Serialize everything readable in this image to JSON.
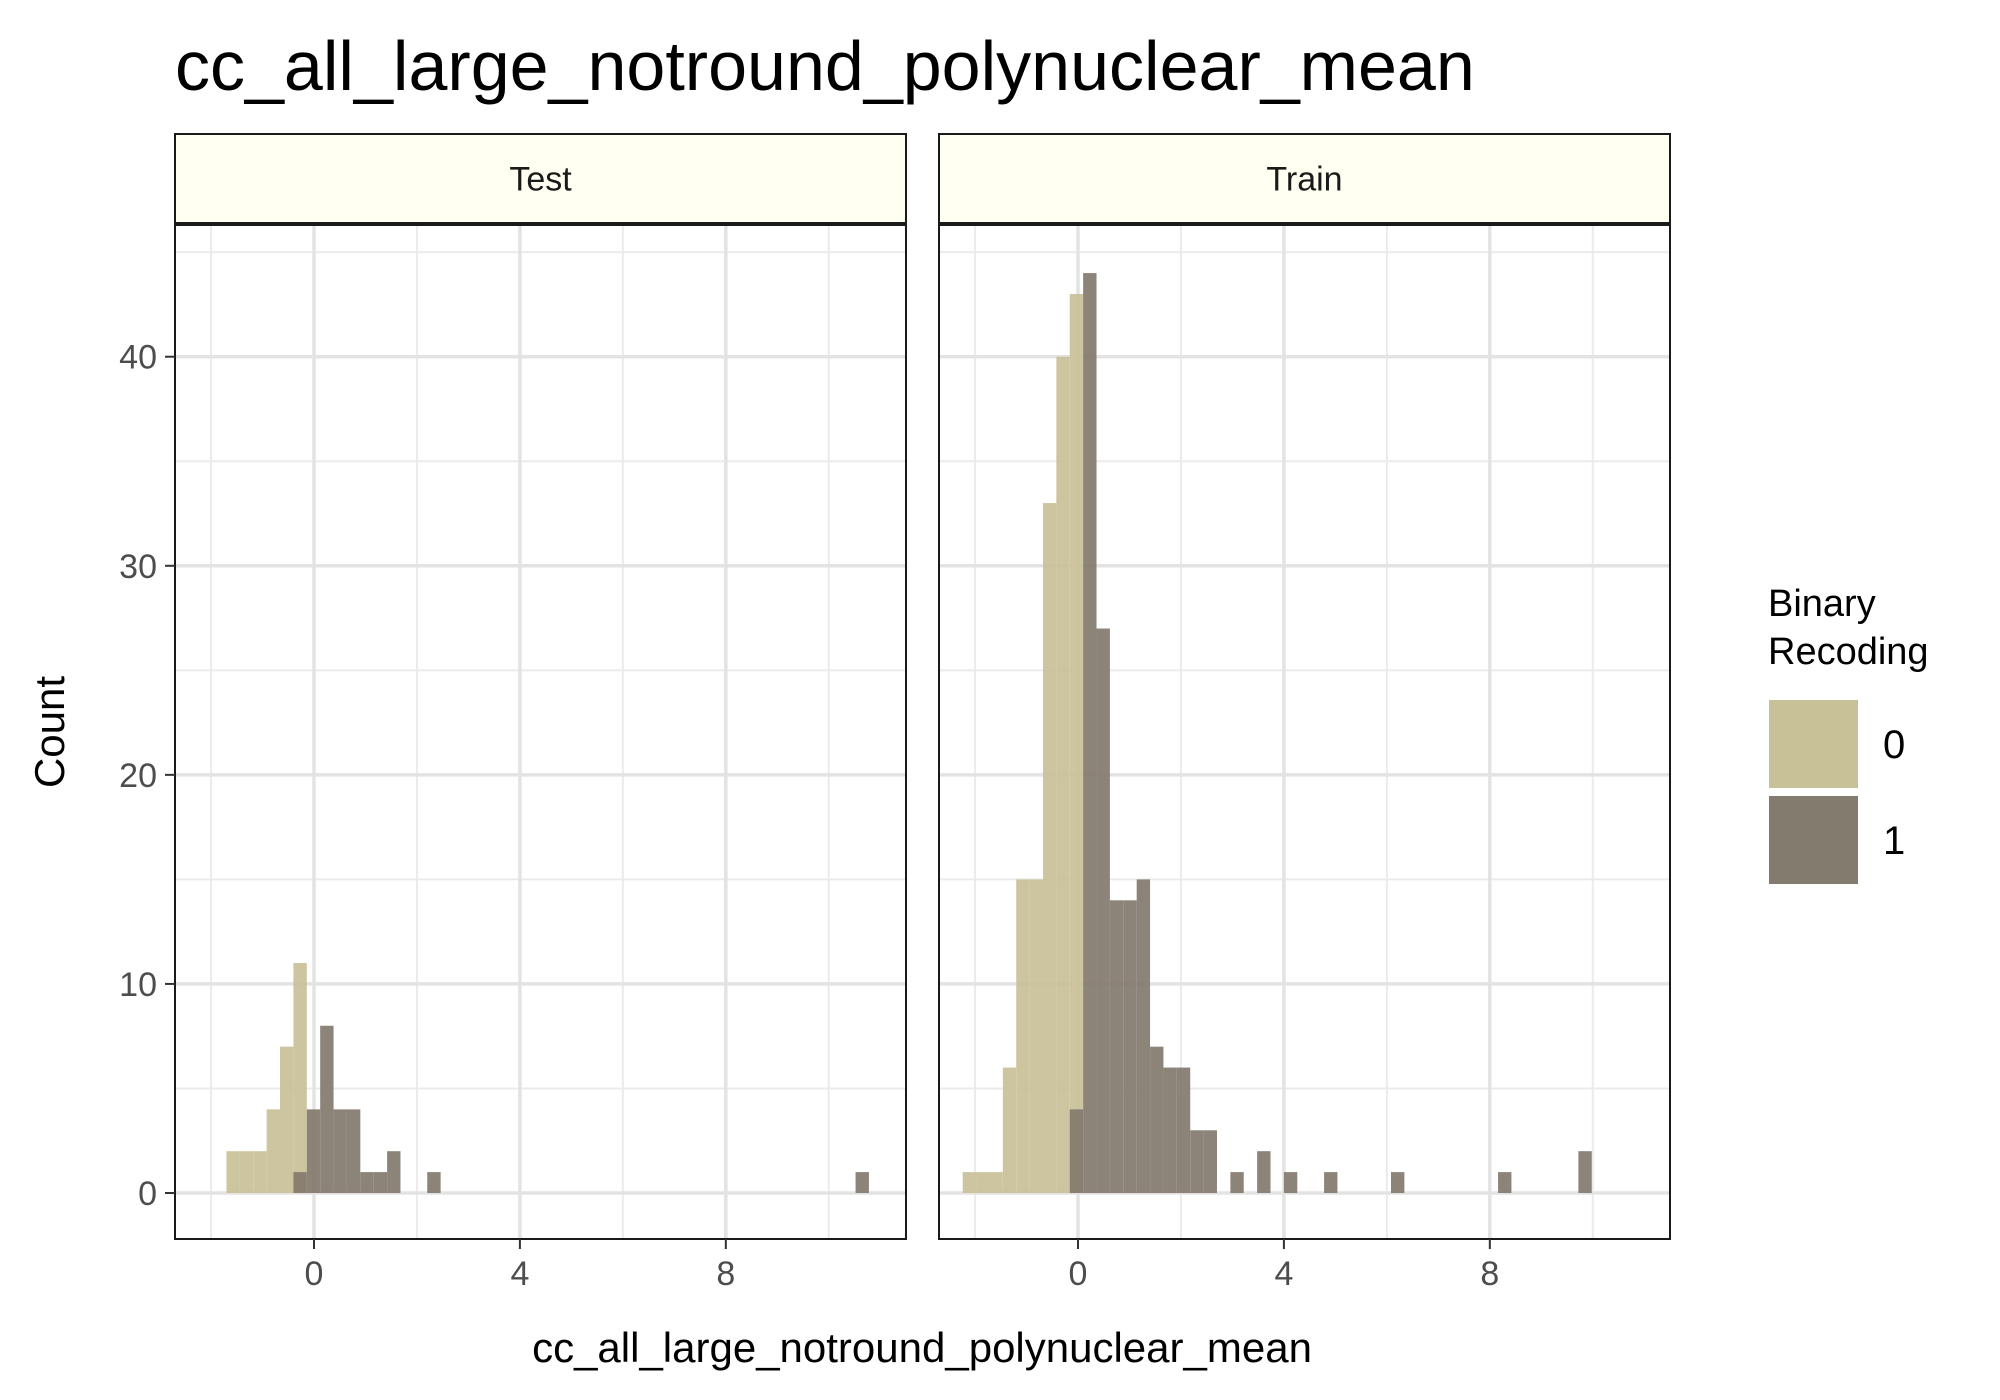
{
  "chart_data": {
    "type": "histogram",
    "title": "cc_all_large_notround_polynuclear_mean",
    "xlabel": "cc_all_large_notround_polynuclear_mean",
    "ylabel": "Count",
    "xlim": [
      -2.7,
      11.5
    ],
    "ylim": [
      -2.2,
      46.3
    ],
    "x_ticks": [
      0,
      4,
      8
    ],
    "y_ticks": [
      0,
      10,
      20,
      30,
      40
    ],
    "grid": true,
    "bin_width": 0.26,
    "legend": {
      "title": "Binary\nRecoding",
      "position": "right",
      "entries": [
        {
          "label": "0",
          "color": "#C8C198"
        },
        {
          "label": "1",
          "color": "#847B6F"
        }
      ]
    },
    "panels": [
      {
        "name": "Test",
        "series": [
          {
            "name": "0",
            "bins": [
              {
                "x": -1.57,
                "count": 2
              },
              {
                "x": -1.31,
                "count": 2
              },
              {
                "x": -1.05,
                "count": 2
              },
              {
                "x": -0.79,
                "count": 4
              },
              {
                "x": -0.53,
                "count": 7
              },
              {
                "x": -0.27,
                "count": 11
              }
            ]
          },
          {
            "name": "1",
            "bins": [
              {
                "x": -0.27,
                "count": 1
              },
              {
                "x": -0.01,
                "count": 4
              },
              {
                "x": 0.25,
                "count": 8
              },
              {
                "x": 0.51,
                "count": 4
              },
              {
                "x": 0.77,
                "count": 4
              },
              {
                "x": 1.03,
                "count": 1
              },
              {
                "x": 1.29,
                "count": 1
              },
              {
                "x": 1.55,
                "count": 2
              },
              {
                "x": 2.33,
                "count": 1
              },
              {
                "x": 10.65,
                "count": 1
              }
            ]
          }
        ]
      },
      {
        "name": "Train",
        "series": [
          {
            "name": "0",
            "bins": [
              {
                "x": -2.11,
                "count": 1
              },
              {
                "x": -1.85,
                "count": 1
              },
              {
                "x": -1.59,
                "count": 1
              },
              {
                "x": -1.33,
                "count": 6
              },
              {
                "x": -1.07,
                "count": 15
              },
              {
                "x": -0.81,
                "count": 15
              },
              {
                "x": -0.55,
                "count": 33
              },
              {
                "x": -0.29,
                "count": 40
              },
              {
                "x": -0.03,
                "count": 43
              }
            ]
          },
          {
            "name": "1",
            "bins": [
              {
                "x": -0.03,
                "count": 4
              },
              {
                "x": 0.23,
                "count": 44
              },
              {
                "x": 0.49,
                "count": 27
              },
              {
                "x": 0.75,
                "count": 14
              },
              {
                "x": 1.01,
                "count": 14
              },
              {
                "x": 1.27,
                "count": 15
              },
              {
                "x": 1.53,
                "count": 7
              },
              {
                "x": 1.79,
                "count": 6
              },
              {
                "x": 2.05,
                "count": 6
              },
              {
                "x": 2.31,
                "count": 3
              },
              {
                "x": 2.57,
                "count": 3
              },
              {
                "x": 3.09,
                "count": 1
              },
              {
                "x": 3.61,
                "count": 2
              },
              {
                "x": 4.13,
                "count": 1
              },
              {
                "x": 4.91,
                "count": 1
              },
              {
                "x": 6.21,
                "count": 1
              },
              {
                "x": 8.29,
                "count": 1
              },
              {
                "x": 9.85,
                "count": 2
              }
            ]
          }
        ]
      }
    ]
  }
}
